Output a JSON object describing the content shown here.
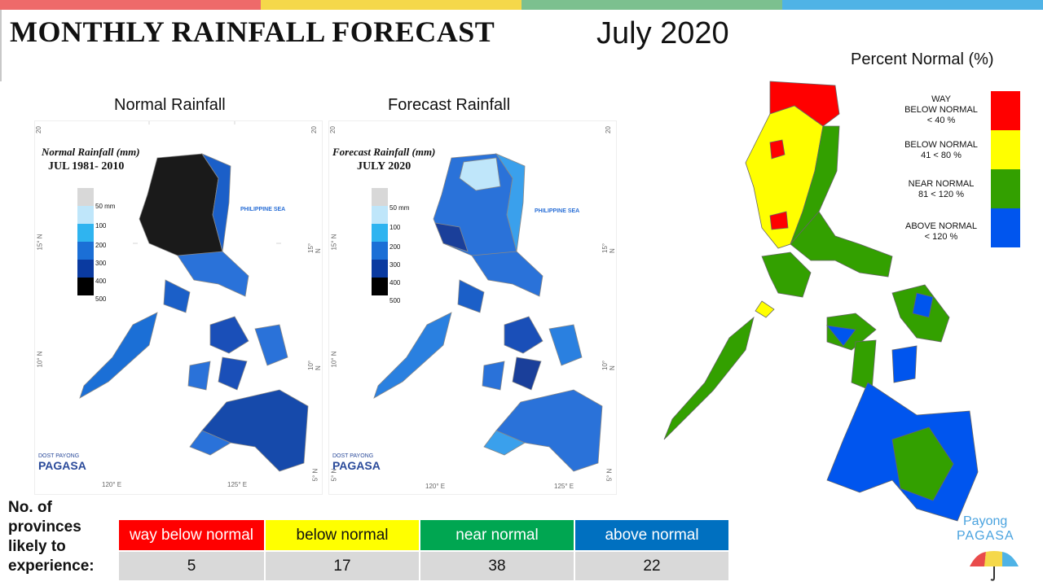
{
  "header": {
    "title": "MONTHLY RAINFALL FORECAST",
    "date": "July 2020",
    "bar_colors": [
      "#ee6a6a",
      "#f5d84a",
      "#7cc08f",
      "#4fb3e6"
    ]
  },
  "normal_map": {
    "label": "Normal Rainfall",
    "caption": "Normal Rainfall (mm)",
    "subcaption": "JUL 1981- 2010",
    "scale": [
      "50 mm",
      "100",
      "200",
      "300",
      "400",
      "500"
    ],
    "scale_colors": [
      "#d8d8d8",
      "#bfe6fa",
      "#2fb4f0",
      "#1b6fd6",
      "#0a3aa0",
      "#000000"
    ],
    "sea_label": "PHILIPPINE SEA",
    "lat_left": [
      "20",
      "15° N",
      "10° N"
    ],
    "lat_right": [
      "20",
      "15° N",
      "10° N",
      "5° N"
    ],
    "lon": [
      "120° E",
      "125° E"
    ],
    "logo_top": "DOST PAYONG",
    "logo_main": "PAGASA"
  },
  "forecast_map": {
    "label": "Forecast Rainfall",
    "caption": "Forecast Rainfall (mm)",
    "subcaption": "JULY 2020",
    "scale": [
      "50 mm",
      "100",
      "200",
      "300",
      "400",
      "500"
    ],
    "scale_colors": [
      "#d8d8d8",
      "#bfe6fa",
      "#2fb4f0",
      "#1b6fd6",
      "#0a3aa0",
      "#000000"
    ],
    "sea_label": "PHILIPPINE SEA",
    "lat_left": [
      "20",
      "15° N",
      "10° N",
      "5° N"
    ],
    "lat_right": [
      "20",
      "15° N",
      "10° N",
      "5° N"
    ],
    "lon": [
      "120° E",
      "125° E"
    ],
    "logo_top": "DOST PAYONG",
    "logo_main": "PAGASA"
  },
  "percent_normal": {
    "title": "Percent Normal (%)",
    "legend": [
      {
        "line1": "WAY",
        "line2": "BELOW NORMAL",
        "line3": "< 40 %",
        "color": "#ff0000"
      },
      {
        "line1": "BELOW NORMAL",
        "line2": "41 < 80 %",
        "line3": "",
        "color": "#ffff00"
      },
      {
        "line1": "NEAR NORMAL",
        "line2": "81 < 120 %",
        "line3": "",
        "color": "#33a000"
      },
      {
        "line1": "ABOVE NORMAL",
        "line2": "< 120 %",
        "line3": "",
        "color": "#0055ee"
      }
    ]
  },
  "provinces": {
    "label_lines": [
      "No. of",
      "provinces",
      "likely to",
      "experience:"
    ],
    "categories": [
      {
        "name": "way below normal",
        "count": "5",
        "color": "#ff0000"
      },
      {
        "name": "below normal",
        "count": "17",
        "color": "#ffff00"
      },
      {
        "name": "near normal",
        "count": "38",
        "color": "#00a651"
      },
      {
        "name": "above normal",
        "count": "22",
        "color": "#0070c0"
      }
    ]
  },
  "branding": {
    "line1": "Payong",
    "line2": "PAGASA"
  }
}
